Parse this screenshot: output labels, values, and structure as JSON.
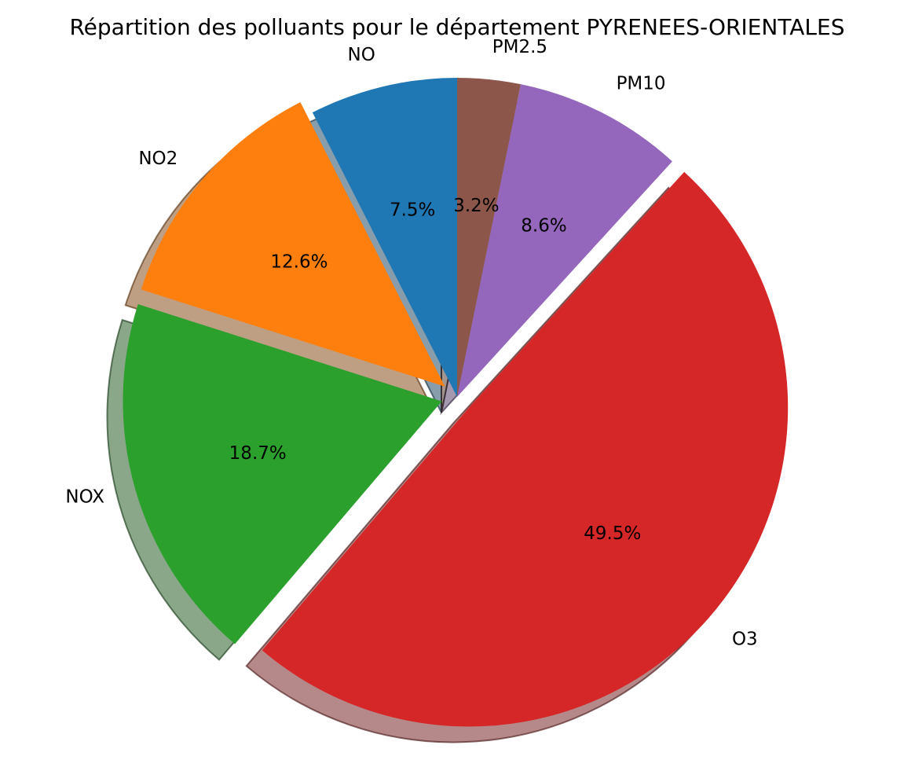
{
  "chart_data": {
    "type": "pie",
    "title": "Répartition des polluants pour le département PYRENEES-ORIENTALES",
    "categories": [
      "NO",
      "NO2",
      "NOX",
      "O3",
      "PM10",
      "PM2.5"
    ],
    "values": [
      7.5,
      12.6,
      18.7,
      49.5,
      8.6,
      3.2
    ],
    "value_labels": [
      "7.5%",
      "12.6%",
      "18.7%",
      "49.5%",
      "8.6%",
      "3.2%"
    ],
    "colors": [
      "#1f77b4",
      "#ff7f0e",
      "#2ca02c",
      "#d62728",
      "#9467bd",
      "#8c564b"
    ],
    "start_angle_deg": 90,
    "direction": "counterclockwise",
    "exploded": [
      "NO2",
      "NOX",
      "O3"
    ],
    "shadow": true,
    "legend": "none"
  }
}
